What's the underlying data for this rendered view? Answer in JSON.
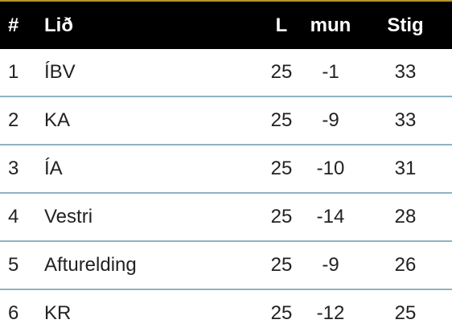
{
  "table": {
    "headers": {
      "pos": "#",
      "team": "Lið",
      "played": "L",
      "diff": "mun",
      "points": "Stig"
    },
    "rows": [
      {
        "pos": "1",
        "team": "ÍBV",
        "played": "25",
        "diff": "-1",
        "points": "33"
      },
      {
        "pos": "2",
        "team": "KA",
        "played": "25",
        "diff": "-9",
        "points": "33"
      },
      {
        "pos": "3",
        "team": "ÍA",
        "played": "25",
        "diff": "-10",
        "points": "31"
      },
      {
        "pos": "4",
        "team": "Vestri",
        "played": "25",
        "diff": "-14",
        "points": "28"
      },
      {
        "pos": "5",
        "team": "Afturelding",
        "played": "25",
        "diff": "-9",
        "points": "26"
      },
      {
        "pos": "6",
        "team": "KR",
        "played": "25",
        "diff": "-12",
        "points": "25"
      }
    ]
  },
  "colors": {
    "header_bg": "#000000",
    "header_text": "#ffffff",
    "accent": "#b8962e",
    "row_divider": "#8fb3c2",
    "row_text": "#222222"
  }
}
